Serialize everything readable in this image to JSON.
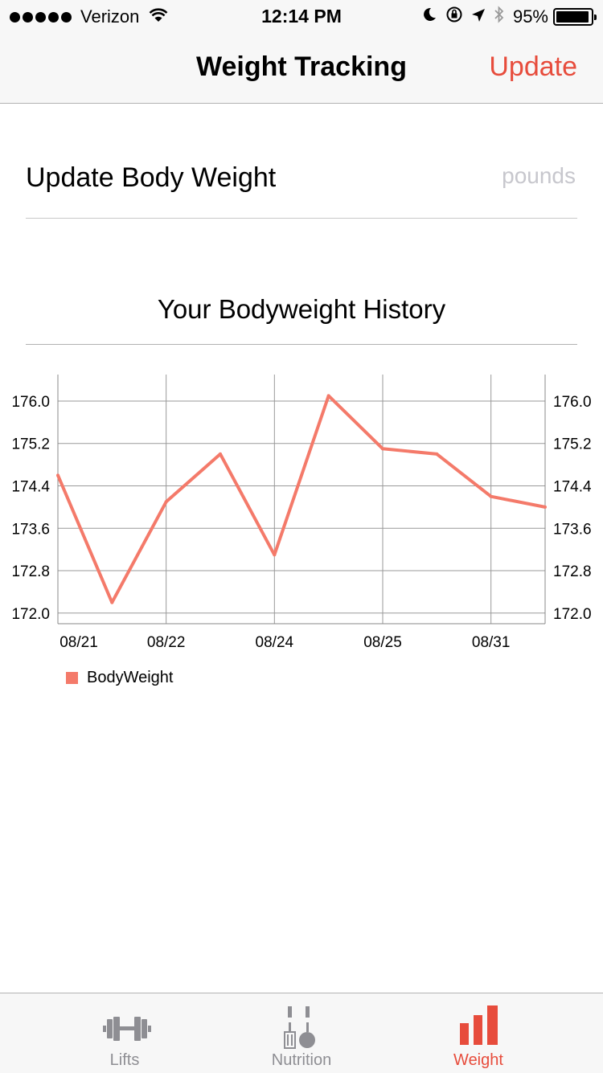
{
  "status_bar": {
    "carrier": "Verizon",
    "time": "12:14 PM",
    "battery": "95%",
    "battery_level": 0.95
  },
  "nav": {
    "title": "Weight Tracking",
    "action": "Update"
  },
  "form": {
    "label": "Update Body Weight",
    "placeholder": "pounds",
    "value": ""
  },
  "section": {
    "title": "Your Bodyweight History"
  },
  "colors": {
    "accent": "#e74c3c",
    "series": "#f47a6a",
    "tab_inactive": "#8e8e93"
  },
  "chart_data": {
    "type": "line",
    "title": "",
    "xlabel": "",
    "ylabel": "",
    "x_ticks": [
      "08/21",
      "08/22",
      "08/24",
      "08/25",
      "08/31"
    ],
    "y_ticks": [
      "176.0",
      "175.2",
      "174.4",
      "173.6",
      "172.8",
      "172.0"
    ],
    "ylim": [
      171.8,
      176.5
    ],
    "grid": true,
    "legend": "bottom-left",
    "series": [
      {
        "name": "BodyWeight",
        "values": [
          174.6,
          172.2,
          174.1,
          175.0,
          173.1,
          176.1,
          175.1,
          175.0,
          174.2,
          174.0
        ]
      }
    ]
  },
  "tabs": [
    {
      "label": "Lifts",
      "icon": "dumbbell-icon",
      "active": false
    },
    {
      "label": "Nutrition",
      "icon": "fork-knife-icon",
      "active": false
    },
    {
      "label": "Weight",
      "icon": "bar-chart-icon",
      "active": true
    }
  ]
}
